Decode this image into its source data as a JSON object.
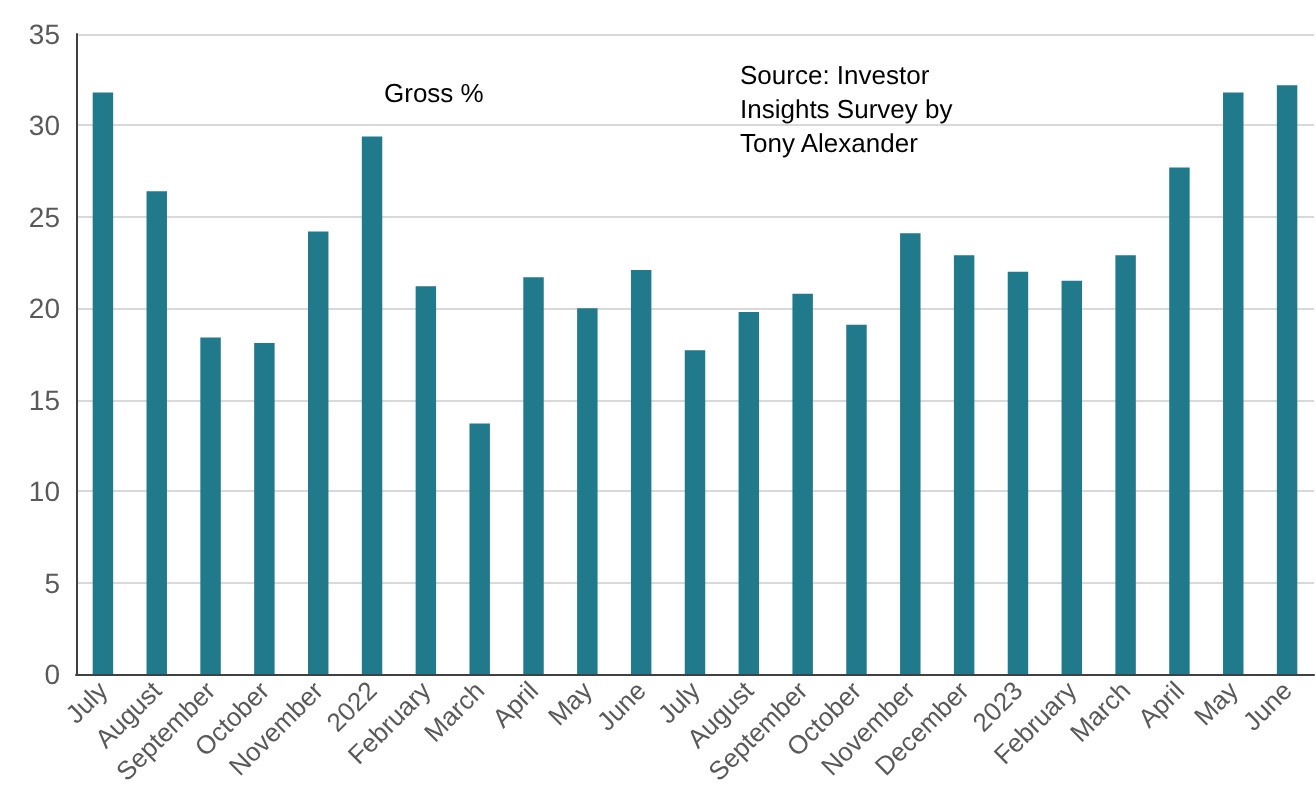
{
  "chart_data": {
    "type": "bar",
    "categories": [
      "July",
      "August",
      "September",
      "October",
      "November",
      "2022",
      "February",
      "March",
      "April",
      "May",
      "June",
      "July",
      "August",
      "September",
      "October",
      "November",
      "December",
      "2023",
      "February",
      "March",
      "April",
      "May",
      "June"
    ],
    "series": [
      {
        "color": "#217a8b",
        "values": [
          31.8,
          26.4,
          18.4,
          18.1,
          24.2,
          29.4,
          21.2,
          13.7,
          21.7,
          20.0,
          22.1,
          17.7,
          19.8,
          20.8,
          19.1,
          24.1,
          22.9,
          22.0,
          21.5,
          22.9,
          27.7,
          31.8,
          32.2
        ]
      }
    ],
    "ylim": [
      0,
      35
    ],
    "yticks": [
      0,
      5,
      10,
      15,
      20,
      25,
      30,
      35
    ],
    "grid": "y",
    "annotations": [
      "Gross %",
      "Source: Investor Insights Survey by Tony Alexander"
    ]
  }
}
